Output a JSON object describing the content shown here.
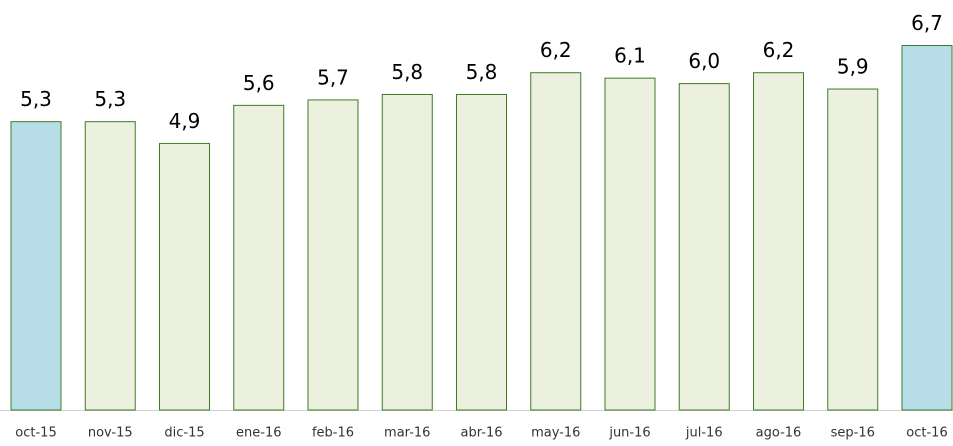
{
  "chart_data": {
    "type": "bar",
    "categories": [
      "oct-15",
      "nov-15",
      "dic-15",
      "ene-16",
      "feb-16",
      "mar-16",
      "abr-16",
      "may-16",
      "jun-16",
      "jul-16",
      "ago-16",
      "sep-16",
      "oct-16"
    ],
    "values": [
      5.3,
      5.3,
      4.9,
      5.6,
      5.7,
      5.8,
      5.8,
      6.2,
      6.1,
      6.0,
      6.2,
      5.9,
      6.7
    ],
    "value_labels": [
      "5,3",
      "5,3",
      "4,9",
      "5,6",
      "5,7",
      "5,8",
      "5,8",
      "6,2",
      "6,1",
      "6,0",
      "6,2",
      "5,9",
      "6,7"
    ],
    "colors": [
      "#b7dde8",
      "#ebf1de",
      "#ebf1de",
      "#ebf1de",
      "#ebf1de",
      "#ebf1de",
      "#ebf1de",
      "#ebf1de",
      "#ebf1de",
      "#ebf1de",
      "#ebf1de",
      "#ebf1de",
      "#b7dde8"
    ],
    "edge_color": "#3b7d23"
  }
}
